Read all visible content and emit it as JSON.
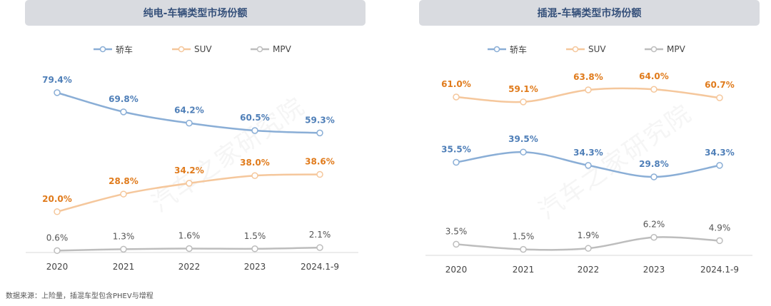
{
  "chart_data": [
    {
      "type": "line",
      "title": "纯电-车辆类型市场份额",
      "categories": [
        "2020",
        "2021",
        "2022",
        "2023",
        "2024.1-9"
      ],
      "series": [
        {
          "name": "轿车",
          "values": [
            79.4,
            69.8,
            64.2,
            60.5,
            59.3
          ],
          "labels": [
            "79.4%",
            "69.8%",
            "64.2%",
            "60.5%",
            "59.3%"
          ],
          "color": "#8aaed6",
          "label_color": "#4f7fb8"
        },
        {
          "name": "SUV",
          "values": [
            20.0,
            28.8,
            34.2,
            38.0,
            38.6
          ],
          "labels": [
            "20.0%",
            "28.8%",
            "34.2%",
            "38.0%",
            "38.6%"
          ],
          "color": "#f5c79c",
          "label_color": "#e07b1c"
        },
        {
          "name": "MPV",
          "values": [
            0.6,
            1.3,
            1.6,
            1.5,
            2.1
          ],
          "labels": [
            "0.6%",
            "1.3%",
            "1.6%",
            "1.5%",
            "2.1%"
          ],
          "color": "#bdbdbd",
          "label_color": "#555555"
        }
      ],
      "watermark": "汽车之家研究院"
    },
    {
      "type": "line",
      "title": "插混-车辆类型市场份额",
      "categories": [
        "2020",
        "2021",
        "2022",
        "2023",
        "2024.1-9"
      ],
      "series": [
        {
          "name": "轿车",
          "values": [
            35.5,
            39.5,
            34.3,
            29.8,
            34.3
          ],
          "labels": [
            "35.5%",
            "39.5%",
            "34.3%",
            "29.8%",
            "34.3%"
          ],
          "color": "#8aaed6",
          "label_color": "#4f7fb8"
        },
        {
          "name": "SUV",
          "values": [
            61.0,
            59.1,
            63.8,
            64.0,
            60.7
          ],
          "labels": [
            "61.0%",
            "59.1%",
            "63.8%",
            "64.0%",
            "60.7%"
          ],
          "color": "#f5c79c",
          "label_color": "#e07b1c"
        },
        {
          "name": "MPV",
          "values": [
            3.5,
            1.5,
            1.9,
            6.2,
            4.9
          ],
          "labels": [
            "3.5%",
            "1.5%",
            "1.9%",
            "6.2%",
            "4.9%"
          ],
          "color": "#bdbdbd",
          "label_color": "#555555"
        }
      ],
      "watermark": "汽车之家研究院"
    }
  ],
  "source_note": "数据来源：上险量，插混车型包含PHEV与增程"
}
